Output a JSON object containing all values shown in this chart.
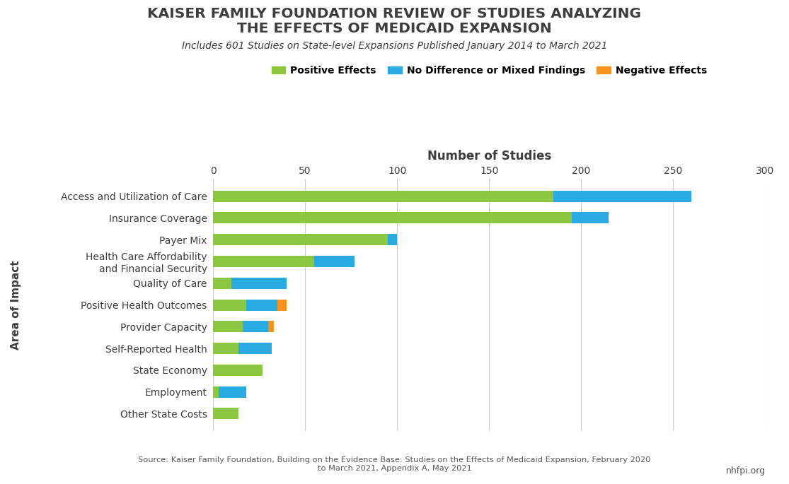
{
  "title_line1": "KAISER FAMILY FOUNDATION REVIEW OF STUDIES ANALYZING",
  "title_line2": "THE EFFECTS OF MEDICAID EXPANSION",
  "subtitle": "Includes 601 Studies on State-level Expansions Published January 2014 to March 2021",
  "xlabel": "Number of Studies",
  "ylabel": "Area of Impact",
  "categories": [
    "Access and Utilization of Care",
    "Insurance Coverage",
    "Payer Mix",
    "Health Care Affordability\nand Financial Security",
    "Quality of Care",
    "Positive Health Outcomes",
    "Provider Capacity",
    "Self-Reported Health",
    "State Economy",
    "Employment",
    "Other State Costs"
  ],
  "positive": [
    185,
    195,
    95,
    55,
    10,
    18,
    16,
    14,
    27,
    3,
    14
  ],
  "mixed": [
    75,
    20,
    5,
    22,
    30,
    17,
    14,
    18,
    0,
    15,
    0
  ],
  "negative": [
    0,
    0,
    0,
    0,
    0,
    5,
    3,
    0,
    0,
    0,
    0
  ],
  "color_positive": "#8DC63F",
  "color_mixed": "#29ABE2",
  "color_negative": "#F7941D",
  "legend_labels": [
    "Positive Effects",
    "No Difference or Mixed Findings",
    "Negative Effects"
  ],
  "xlim": [
    0,
    300
  ],
  "xticks": [
    0,
    50,
    100,
    150,
    200,
    250,
    300
  ],
  "source_text": "Source: Kaiser Family Foundation, Building on the Evidence Base: Studies on the Effects of Medicaid Expansion, February 2020\nto March 2021, Appendix A, May 2021",
  "nhfpi_text": "nhfpi.org",
  "title_color": "#3d3d3d",
  "subtitle_color": "#3d3d3d",
  "axis_label_color": "#3d3d3d",
  "background_color": "#FFFFFF"
}
